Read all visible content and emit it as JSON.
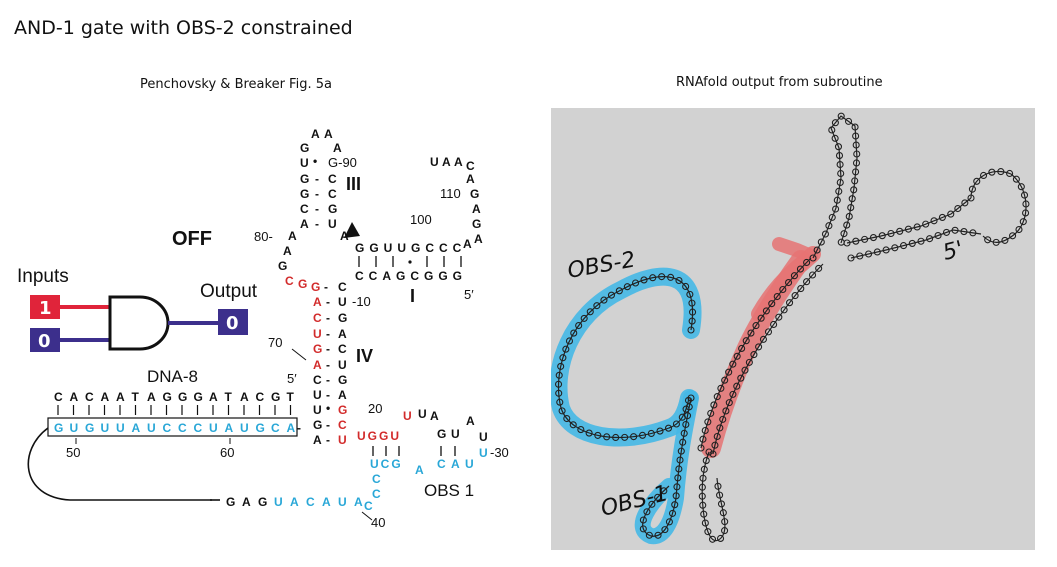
{
  "title": "AND-1 gate with OBS-2 constrained",
  "left_panel": {
    "caption": "Penchovsky & Breaker Fig. 5a",
    "state_label": "OFF",
    "inputs_label": "Inputs",
    "output_label": "Output",
    "input_1_value": "1",
    "input_2_value": "0",
    "output_value": "0",
    "dna_label": "DNA-8",
    "obs_label": "OBS 1",
    "stem_labels": {
      "III": "III",
      "IV": "IV",
      "I": "I"
    },
    "position_labels": {
      "p90": "G-90",
      "p110": "110",
      "p100": "100",
      "p80": "80-",
      "p10": "-10",
      "p70": "70",
      "p20": "20",
      "p30": "-30",
      "p40": "40",
      "p50": "50",
      "p60": "60",
      "five_prime_a": "5′",
      "five_prime_b": "5′"
    },
    "dna_top_strand": "CACAATAGGGATACGT",
    "dna_bottom_strand": "GUGUUAUCCCUAUGCA",
    "tail_sequence": [
      "G",
      "A",
      "G",
      "U",
      "A",
      "C",
      "A",
      "U",
      "A"
    ],
    "tail_colors": [
      "black",
      "black",
      "black",
      "cyan",
      "cyan",
      "cyan",
      "cyan",
      "cyan",
      "cyan"
    ],
    "colors": {
      "red": "#d22b2b",
      "cyan": "#29a7d7",
      "input1": "#e0243a",
      "navy": "#3c2f8c"
    }
  },
  "right_panel": {
    "caption": "RNAfold output from subroutine",
    "annotations": {
      "obs2": "OBS-2",
      "obs1": "OBS-1",
      "five_prime": "5'"
    },
    "background": "#d2d2d2",
    "highlight_colors": {
      "obs": "#45b8e6",
      "stem": "#e67373"
    }
  }
}
